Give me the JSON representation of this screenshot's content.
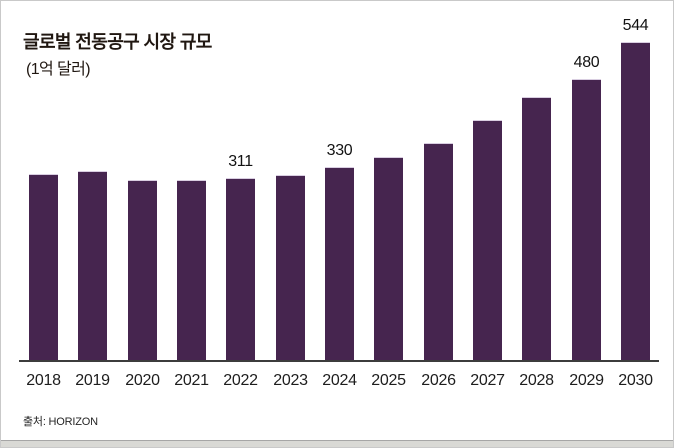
{
  "chart_data": {
    "type": "bar",
    "title": "글로벌 전동공구 시장 규모",
    "subtitle": "(1억 달러)",
    "xlabel": "",
    "ylabel": "(1억 달러)",
    "categories": [
      "2018",
      "2019",
      "2020",
      "2021",
      "2022",
      "2023",
      "2024",
      "2025",
      "2026",
      "2027",
      "2028",
      "2029",
      "2030"
    ],
    "values": [
      319,
      324,
      309,
      309,
      311,
      317,
      330,
      348,
      372,
      410,
      450,
      480,
      544
    ],
    "data_labels_shown": {
      "2022": 311,
      "2024": 330,
      "2029": 480,
      "2030": 544
    },
    "ylim": [
      0,
      560
    ],
    "grid": false,
    "legend": false,
    "bar_color": "#46254f",
    "bar_top_edge_color": "#d9cee1",
    "axis_line_color": "#3c3c3c",
    "label_color": "#121212",
    "title_color": "#201711",
    "source": "출처: HORIZON"
  }
}
